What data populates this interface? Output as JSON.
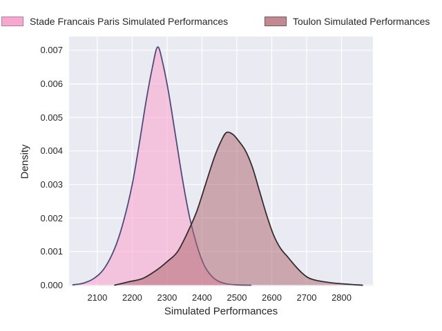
{
  "legend": {
    "items": [
      {
        "label": "Stade Francais Paris Simulated Performances",
        "swatch_fill": "#F6A9CD",
        "swatch_border": "#AF7BA5"
      },
      {
        "label": "Toulon Simulated Performances",
        "swatch_fill": "#C18A92",
        "swatch_border": "#73575B"
      }
    ]
  },
  "chart_data": {
    "type": "area",
    "title": "",
    "xlabel": "Simulated Performances",
    "ylabel": "Density",
    "xlim": [
      2019,
      2890
    ],
    "ylim": [
      -3e-05,
      0.00741
    ],
    "grid": true,
    "legend_position": "top",
    "background": "#EAEAF2",
    "grid_color": "#FFFFFF",
    "x_ticks": [
      {
        "v": 2100,
        "label": "2100"
      },
      {
        "v": 2200,
        "label": "2200"
      },
      {
        "v": 2300,
        "label": "2300"
      },
      {
        "v": 2400,
        "label": "2400"
      },
      {
        "v": 2500,
        "label": "2500"
      },
      {
        "v": 2600,
        "label": "2600"
      },
      {
        "v": 2700,
        "label": "2700"
      },
      {
        "v": 2800,
        "label": "2800"
      }
    ],
    "y_ticks": [
      {
        "v": 0.0,
        "label": "0.000"
      },
      {
        "v": 0.001,
        "label": "0.001"
      },
      {
        "v": 0.002,
        "label": "0.002"
      },
      {
        "v": 0.003,
        "label": "0.003"
      },
      {
        "v": 0.004,
        "label": "0.004"
      },
      {
        "v": 0.005,
        "label": "0.005"
      },
      {
        "v": 0.006,
        "label": "0.006"
      },
      {
        "v": 0.007,
        "label": "0.007"
      }
    ],
    "series": [
      {
        "name": "Stade Francais Paris Simulated Performances",
        "peak_x": 2273,
        "peak_density": 0.0071,
        "line_color": "#4E4A7C",
        "fill_color": "rgba(250,160,202,0.55)",
        "x": [
          2030,
          2060,
          2090,
          2120,
          2150,
          2175,
          2200,
          2220,
          2240,
          2258,
          2273,
          2288,
          2305,
          2325,
          2345,
          2365,
          2385,
          2405,
          2425,
          2445,
          2470,
          2500,
          2540
        ],
        "density": [
          1e-05,
          6e-05,
          0.0002,
          0.0005,
          0.0011,
          0.0019,
          0.003,
          0.0042,
          0.0055,
          0.0065,
          0.0071,
          0.0066,
          0.0057,
          0.0044,
          0.0031,
          0.002,
          0.0012,
          0.00062,
          0.0003,
          0.00013,
          4e-05,
          1e-05,
          0
        ]
      },
      {
        "name": "Toulon Simulated Performances",
        "peak_x": 2470,
        "peak_density": 0.00455,
        "line_color": "#332D2F",
        "fill_color": "rgba(174,104,114,0.52)",
        "x": [
          2150,
          2190,
          2230,
          2270,
          2300,
          2330,
          2360,
          2385,
          2410,
          2435,
          2455,
          2470,
          2488,
          2505,
          2525,
          2545,
          2565,
          2585,
          2605,
          2625,
          2645,
          2665,
          2685,
          2705,
          2725,
          2750,
          2780,
          2815,
          2860
        ],
        "density": [
          0,
          0.0001,
          0.0002,
          0.00045,
          0.0007,
          0.001,
          0.0016,
          0.0022,
          0.003,
          0.0038,
          0.0043,
          0.00455,
          0.0045,
          0.0043,
          0.004,
          0.0035,
          0.0028,
          0.0021,
          0.0015,
          0.0011,
          0.00085,
          0.0006,
          0.00038,
          0.00022,
          0.00015,
          0.0001,
          6e-05,
          3e-05,
          0
        ]
      }
    ]
  }
}
